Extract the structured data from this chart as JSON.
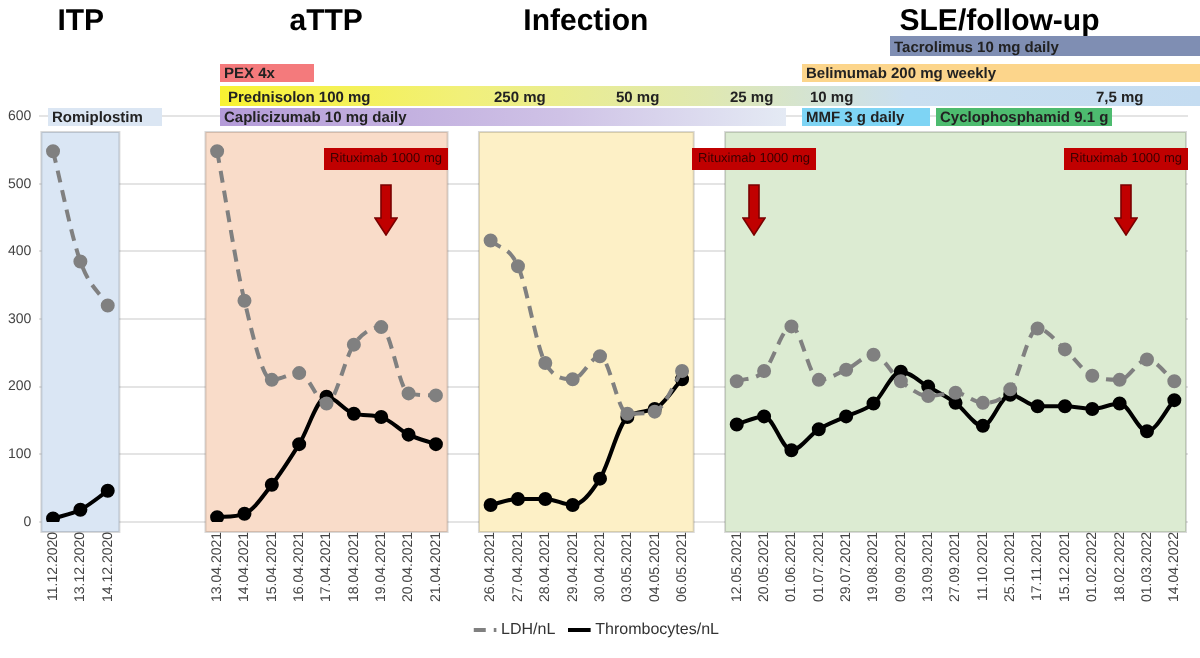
{
  "chart_data": {
    "type": "line",
    "categories": [
      "11.12.2020",
      "13.12.2020",
      "14.12.2020",
      null,
      null,
      null,
      "13.04.2021",
      "14.04.2021",
      "15.04.2021",
      "16.04.2021",
      "17.04.2021",
      "18.04.2021",
      "19.04.2021",
      "20.04.2021",
      "21.04.2021",
      null,
      "26.04.2021",
      "27.04.2021",
      "28.04.2021",
      "29.04.2021",
      "30.04.2021",
      "03.05.2021",
      "04.05.2021",
      "06.05.2021",
      null,
      "12.05.2021",
      "20.05.2021",
      "01.06.2021",
      "01.07.2021",
      "29.07.2021",
      "19.08.2021",
      "09.09.2021",
      "13.09.2021",
      "27.09.2021",
      "11.10.2021",
      "25.10.2021",
      "17.11.2021",
      "15.12.2021",
      "01.02.2022",
      "18.02.2022",
      "01.03.2022",
      "14.04.2022"
    ],
    "series": [
      {
        "name": "LDH/nL",
        "color": "#808080",
        "line_style": "dashed",
        "values": [
          548,
          385,
          320,
          null,
          null,
          null,
          548,
          327,
          210,
          220,
          175,
          262,
          288,
          190,
          187,
          null,
          416,
          378,
          235,
          211,
          245,
          160,
          163,
          223,
          null,
          208,
          223,
          289,
          210,
          225,
          247,
          208,
          186,
          191,
          176,
          196,
          286,
          255,
          216,
          210,
          240,
          208
        ]
      },
      {
        "name": "Thrombocytes/nL",
        "color": "#000000",
        "line_style": "solid",
        "values": [
          5,
          18,
          46,
          null,
          null,
          null,
          7,
          12,
          55,
          115,
          185,
          160,
          155,
          129,
          115,
          null,
          25,
          34,
          34,
          25,
          64,
          155,
          167,
          211,
          null,
          144,
          156,
          106,
          137,
          156,
          175,
          222,
          200,
          176,
          142,
          188,
          171,
          171,
          167,
          175,
          134,
          180
        ]
      }
    ],
    "ylim": [
      0,
      600
    ],
    "yticks": [
      0,
      100,
      200,
      300,
      400,
      500,
      600
    ],
    "grid": "y",
    "legend": "bottom",
    "marker": "circle",
    "bands": [
      {
        "axis": "x",
        "from": "11.12.2020",
        "to": "14.12.2020",
        "color": "#dae6f4"
      },
      {
        "axis": "x",
        "from": "13.04.2021",
        "to": "21.04.2021",
        "color": "#f9dcc9"
      },
      {
        "axis": "x",
        "from": "26.04.2021",
        "to": "06.05.2021",
        "color": "#fdf0c6"
      },
      {
        "axis": "x",
        "from": "12.05.2021",
        "to": "14.04.2022",
        "color": "#dcebd2"
      }
    ],
    "annotations": [
      "ITP",
      "aTTP",
      "Infection",
      "SLE/follow-up",
      "Tacrolimus 10 mg daily",
      "PEX 4x",
      "Belimumab 200 mg weekly",
      "Prednisolon 100 mg",
      "250 mg",
      "50 mg",
      "25 mg",
      "10 mg",
      "7,5 mg",
      "Romiplostim",
      "Caplicizumab 10 mg daily",
      "MMF 3 g daily",
      "Cyclophosphamid 9.1 g",
      "Rituximab 1000 mg",
      "Rituximab 1000 mg",
      "Rituximab 1000 mg"
    ]
  }
}
